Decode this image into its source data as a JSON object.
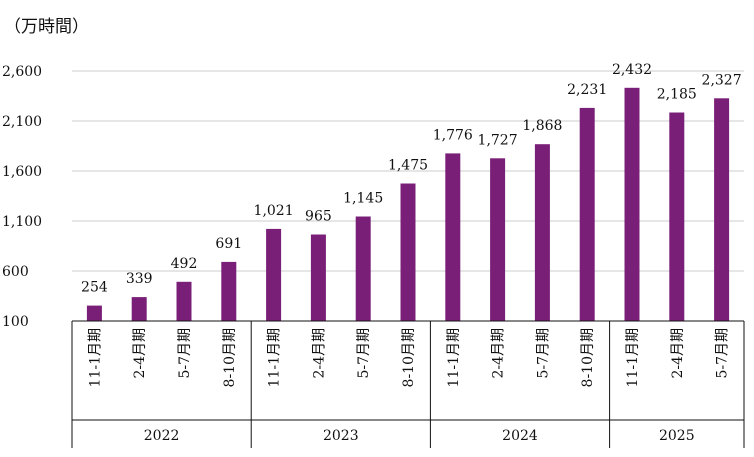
{
  "chart_data": {
    "type": "bar",
    "title": "",
    "unit_label": "（万時間）",
    "xlabel": "",
    "ylabel": "",
    "ylim": [
      100,
      2600
    ],
    "yticks": [
      "100",
      "600",
      "1,100",
      "1,600",
      "2,100",
      "2,600"
    ],
    "ytick_values": [
      100,
      600,
      1100,
      1600,
      2100,
      2600
    ],
    "grid": true,
    "bar_color": "#7a1f78",
    "categories": [
      "11-1月期",
      "2-4月期",
      "5-7月期",
      "8-10月期",
      "11-1月期",
      "2-4月期",
      "5-7月期",
      "8-10月期",
      "11-1月期",
      "2-4月期",
      "5-7月期",
      "8-10月期",
      "11-1月期",
      "2-4月期",
      "5-7月期"
    ],
    "values": [
      254,
      339,
      492,
      691,
      1021,
      965,
      1145,
      1475,
      1776,
      1727,
      1868,
      2231,
      2432,
      2185,
      2327
    ],
    "value_labels": [
      "254",
      "339",
      "492",
      "691",
      "1,021",
      "965",
      "1,145",
      "1,475",
      "1,776",
      "1,727",
      "1,868",
      "2,231",
      "2,432",
      "2,185",
      "2,327"
    ],
    "groups": [
      {
        "label": "2022",
        "count": 4
      },
      {
        "label": "2023",
        "count": 4
      },
      {
        "label": "2024",
        "count": 4
      },
      {
        "label": "2025",
        "count": 3
      }
    ]
  }
}
